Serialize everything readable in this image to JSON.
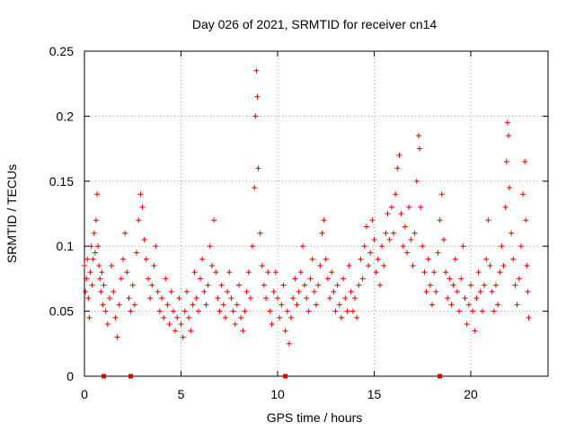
{
  "chart_data": {
    "type": "scatter",
    "title": "Day 026 of 2021, SRMTID for receiver cn14",
    "xlabel": "GPS time / hours",
    "ylabel": "SRMTID / TECUs",
    "xlim": [
      0,
      24
    ],
    "ylim": [
      0,
      0.25
    ],
    "xticks": [
      0,
      5,
      10,
      15,
      20
    ],
    "xtick_labels": [
      "0",
      "5",
      "10",
      "15",
      "20"
    ],
    "yticks": [
      0,
      0.05,
      0.1,
      0.15,
      0.2,
      0.25
    ],
    "ytick_labels": [
      "0",
      "0.05",
      "0.1",
      "0.15",
      "0.2",
      "0.25"
    ],
    "grid": true,
    "marker": "plus",
    "color": "#e00000",
    "baseline_markers_x": [
      1.0,
      2.4,
      10.4,
      18.4
    ],
    "series": [
      {
        "name": "SRMTID",
        "points": [
          [
            0.0,
            0.085
          ],
          [
            0.05,
            0.065
          ],
          [
            0.1,
            0.075
          ],
          [
            0.15,
            0.09
          ],
          [
            0.2,
            0.06
          ],
          [
            0.25,
            0.045
          ],
          [
            0.3,
            0.08
          ],
          [
            0.35,
            0.1
          ],
          [
            0.4,
            0.07
          ],
          [
            0.45,
            0.09
          ],
          [
            0.5,
            0.11
          ],
          [
            0.55,
            0.095
          ],
          [
            0.6,
            0.12
          ],
          [
            0.65,
            0.14
          ],
          [
            0.7,
            0.1
          ],
          [
            0.75,
            0.085
          ],
          [
            0.8,
            0.075
          ],
          [
            0.85,
            0.065
          ],
          [
            0.9,
            0.08
          ],
          [
            0.95,
            0.055
          ],
          [
            1.0,
            0.07
          ],
          [
            1.1,
            0.05
          ],
          [
            1.2,
            0.04
          ],
          [
            1.3,
            0.06
          ],
          [
            1.4,
            0.085
          ],
          [
            1.5,
            0.065
          ],
          [
            1.6,
            0.045
          ],
          [
            1.7,
            0.03
          ],
          [
            1.8,
            0.055
          ],
          [
            1.9,
            0.075
          ],
          [
            2.0,
            0.09
          ],
          [
            2.1,
            0.11
          ],
          [
            2.2,
            0.08
          ],
          [
            2.3,
            0.06
          ],
          [
            2.4,
            0.05
          ],
          [
            2.5,
            0.07
          ],
          [
            2.6,
            0.055
          ],
          [
            2.7,
            0.095
          ],
          [
            2.8,
            0.12
          ],
          [
            2.9,
            0.14
          ],
          [
            3.0,
            0.13
          ],
          [
            3.1,
            0.105
          ],
          [
            3.2,
            0.09
          ],
          [
            3.3,
            0.075
          ],
          [
            3.4,
            0.06
          ],
          [
            3.5,
            0.07
          ],
          [
            3.6,
            0.085
          ],
          [
            3.7,
            0.1
          ],
          [
            3.8,
            0.065
          ],
          [
            3.9,
            0.05
          ],
          [
            4.0,
            0.06
          ],
          [
            4.1,
            0.045
          ],
          [
            4.2,
            0.075
          ],
          [
            4.3,
            0.055
          ],
          [
            4.4,
            0.04
          ],
          [
            4.5,
            0.065
          ],
          [
            4.6,
            0.05
          ],
          [
            4.7,
            0.035
          ],
          [
            4.8,
            0.045
          ],
          [
            4.9,
            0.06
          ],
          [
            5.0,
            0.04
          ],
          [
            5.1,
            0.03
          ],
          [
            5.2,
            0.05
          ],
          [
            5.3,
            0.065
          ],
          [
            5.4,
            0.045
          ],
          [
            5.5,
            0.035
          ],
          [
            5.6,
            0.055
          ],
          [
            5.7,
            0.08
          ],
          [
            5.8,
            0.06
          ],
          [
            5.9,
            0.05
          ],
          [
            6.0,
            0.075
          ],
          [
            6.1,
            0.09
          ],
          [
            6.2,
            0.065
          ],
          [
            6.3,
            0.055
          ],
          [
            6.4,
            0.07
          ],
          [
            6.5,
            0.1
          ],
          [
            6.6,
            0.085
          ],
          [
            6.7,
            0.12
          ],
          [
            6.8,
            0.08
          ],
          [
            6.9,
            0.06
          ],
          [
            7.0,
            0.05
          ],
          [
            7.1,
            0.07
          ],
          [
            7.2,
            0.055
          ],
          [
            7.3,
            0.045
          ],
          [
            7.4,
            0.065
          ],
          [
            7.5,
            0.08
          ],
          [
            7.6,
            0.06
          ],
          [
            7.7,
            0.05
          ],
          [
            7.8,
            0.04
          ],
          [
            7.9,
            0.055
          ],
          [
            8.0,
            0.07
          ],
          [
            8.1,
            0.045
          ],
          [
            8.2,
            0.035
          ],
          [
            8.3,
            0.05
          ],
          [
            8.4,
            0.065
          ],
          [
            8.5,
            0.08
          ],
          [
            8.6,
            0.06
          ],
          [
            8.7,
            0.1
          ],
          [
            8.8,
            0.145
          ],
          [
            8.85,
            0.2
          ],
          [
            8.9,
            0.235
          ],
          [
            8.95,
            0.215
          ],
          [
            9.0,
            0.16
          ],
          [
            9.1,
            0.11
          ],
          [
            9.2,
            0.085
          ],
          [
            9.3,
            0.07
          ],
          [
            9.4,
            0.06
          ],
          [
            9.5,
            0.08
          ],
          [
            9.6,
            0.05
          ],
          [
            9.7,
            0.04
          ],
          [
            9.8,
            0.065
          ],
          [
            9.9,
            0.08
          ],
          [
            10.0,
            0.06
          ],
          [
            10.1,
            0.045
          ],
          [
            10.2,
            0.055
          ],
          [
            10.3,
            0.07
          ],
          [
            10.4,
            0.035
          ],
          [
            10.5,
            0.05
          ],
          [
            10.6,
            0.025
          ],
          [
            10.7,
            0.045
          ],
          [
            10.8,
            0.06
          ],
          [
            10.9,
            0.075
          ],
          [
            11.0,
            0.055
          ],
          [
            11.1,
            0.065
          ],
          [
            11.2,
            0.08
          ],
          [
            11.3,
            0.1
          ],
          [
            11.4,
            0.07
          ],
          [
            11.5,
            0.06
          ],
          [
            11.6,
            0.05
          ],
          [
            11.7,
            0.075
          ],
          [
            11.8,
            0.09
          ],
          [
            11.9,
            0.065
          ],
          [
            12.0,
            0.055
          ],
          [
            12.1,
            0.07
          ],
          [
            12.2,
            0.085
          ],
          [
            12.3,
            0.11
          ],
          [
            12.4,
            0.12
          ],
          [
            12.5,
            0.09
          ],
          [
            12.6,
            0.075
          ],
          [
            12.7,
            0.06
          ],
          [
            12.8,
            0.08
          ],
          [
            12.9,
            0.065
          ],
          [
            13.0,
            0.05
          ],
          [
            13.1,
            0.07
          ],
          [
            13.2,
            0.055
          ],
          [
            13.3,
            0.045
          ],
          [
            13.4,
            0.075
          ],
          [
            13.5,
            0.06
          ],
          [
            13.6,
            0.05
          ],
          [
            13.7,
            0.085
          ],
          [
            13.8,
            0.065
          ],
          [
            13.9,
            0.05
          ],
          [
            14.0,
            0.06
          ],
          [
            14.1,
            0.045
          ],
          [
            14.2,
            0.07
          ],
          [
            14.3,
            0.09
          ],
          [
            14.4,
            0.075
          ],
          [
            14.5,
            0.1
          ],
          [
            14.6,
            0.115
          ],
          [
            14.7,
            0.085
          ],
          [
            14.8,
            0.095
          ],
          [
            14.9,
            0.12
          ],
          [
            15.0,
            0.105
          ],
          [
            15.1,
            0.08
          ],
          [
            15.2,
            0.09
          ],
          [
            15.3,
            0.07
          ],
          [
            15.4,
            0.1
          ],
          [
            15.5,
            0.085
          ],
          [
            15.6,
            0.11
          ],
          [
            15.7,
            0.125
          ],
          [
            15.8,
            0.105
          ],
          [
            15.9,
            0.13
          ],
          [
            16.0,
            0.11
          ],
          [
            16.1,
            0.14
          ],
          [
            16.2,
            0.16
          ],
          [
            16.3,
            0.17
          ],
          [
            16.4,
            0.125
          ],
          [
            16.5,
            0.1
          ],
          [
            16.6,
            0.115
          ],
          [
            16.7,
            0.095
          ],
          [
            16.8,
            0.13
          ],
          [
            16.9,
            0.105
          ],
          [
            17.0,
            0.085
          ],
          [
            17.1,
            0.11
          ],
          [
            17.2,
            0.15
          ],
          [
            17.3,
            0.185
          ],
          [
            17.35,
            0.175
          ],
          [
            17.4,
            0.13
          ],
          [
            17.5,
            0.1
          ],
          [
            17.6,
            0.08
          ],
          [
            17.7,
            0.065
          ],
          [
            17.8,
            0.09
          ],
          [
            17.9,
            0.07
          ],
          [
            18.0,
            0.055
          ],
          [
            18.1,
            0.08
          ],
          [
            18.2,
            0.065
          ],
          [
            18.3,
            0.095
          ],
          [
            18.4,
            0.12
          ],
          [
            18.5,
            0.14
          ],
          [
            18.6,
            0.105
          ],
          [
            18.7,
            0.08
          ],
          [
            18.8,
            0.06
          ],
          [
            18.9,
            0.075
          ],
          [
            19.0,
            0.055
          ],
          [
            19.1,
            0.07
          ],
          [
            19.2,
            0.09
          ],
          [
            19.3,
            0.065
          ],
          [
            19.4,
            0.05
          ],
          [
            19.5,
            0.075
          ],
          [
            19.6,
            0.1
          ],
          [
            19.7,
            0.06
          ],
          [
            19.8,
            0.04
          ],
          [
            19.9,
            0.055
          ],
          [
            20.0,
            0.07
          ],
          [
            20.1,
            0.05
          ],
          [
            20.2,
            0.035
          ],
          [
            20.3,
            0.06
          ],
          [
            20.4,
            0.08
          ],
          [
            20.5,
            0.065
          ],
          [
            20.6,
            0.05
          ],
          [
            20.7,
            0.07
          ],
          [
            20.8,
            0.09
          ],
          [
            20.9,
            0.12
          ],
          [
            21.0,
            0.085
          ],
          [
            21.1,
            0.065
          ],
          [
            21.2,
            0.05
          ],
          [
            21.3,
            0.07
          ],
          [
            21.4,
            0.055
          ],
          [
            21.5,
            0.08
          ],
          [
            21.6,
            0.1
          ],
          [
            21.7,
            0.085
          ],
          [
            21.8,
            0.13
          ],
          [
            21.85,
            0.165
          ],
          [
            21.9,
            0.195
          ],
          [
            21.95,
            0.185
          ],
          [
            22.0,
            0.145
          ],
          [
            22.1,
            0.11
          ],
          [
            22.2,
            0.09
          ],
          [
            22.3,
            0.07
          ],
          [
            22.4,
            0.055
          ],
          [
            22.5,
            0.075
          ],
          [
            22.6,
            0.1
          ],
          [
            22.7,
            0.14
          ],
          [
            22.8,
            0.165
          ],
          [
            22.85,
            0.12
          ],
          [
            22.9,
            0.085
          ],
          [
            22.95,
            0.065
          ],
          [
            23.0,
            0.045
          ]
        ]
      }
    ]
  }
}
